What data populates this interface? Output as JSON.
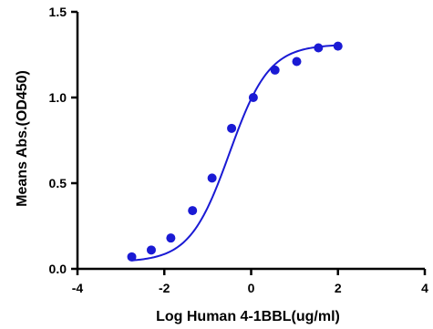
{
  "chart_data": {
    "type": "scatter",
    "title": "",
    "xlabel": "Log Human 4-1BBL(ug/ml)",
    "ylabel": "Means Abs.(OD450)",
    "xlim": [
      -4,
      4
    ],
    "ylim": [
      0,
      1.5
    ],
    "x_ticks": [
      -4,
      -2,
      0,
      2,
      4
    ],
    "x_tick_labels": [
      "-4",
      "-2",
      "0",
      "2",
      "4"
    ],
    "y_ticks": [
      0,
      0.5,
      1.0,
      1.5
    ],
    "y_tick_labels": [
      "0.0",
      "0.5",
      "1.0",
      "1.5"
    ],
    "grid": false,
    "series": [
      {
        "x": [
          -2.75,
          -2.3,
          -1.85,
          -1.35,
          -0.9,
          -0.45,
          0.05,
          0.55,
          1.05,
          1.55,
          2.0
        ],
        "y": [
          0.07,
          0.11,
          0.18,
          0.34,
          0.53,
          0.82,
          1.0,
          1.16,
          1.21,
          1.29,
          1.3
        ],
        "color": "#1a1ad4"
      }
    ],
    "fit_curve": {
      "model": "4PL",
      "bottom": 0.04,
      "top": 1.31,
      "ec50_log": -0.5,
      "hill": 0.95,
      "x_range": [
        -2.75,
        2.0
      ],
      "color": "#1a1ad4"
    }
  }
}
